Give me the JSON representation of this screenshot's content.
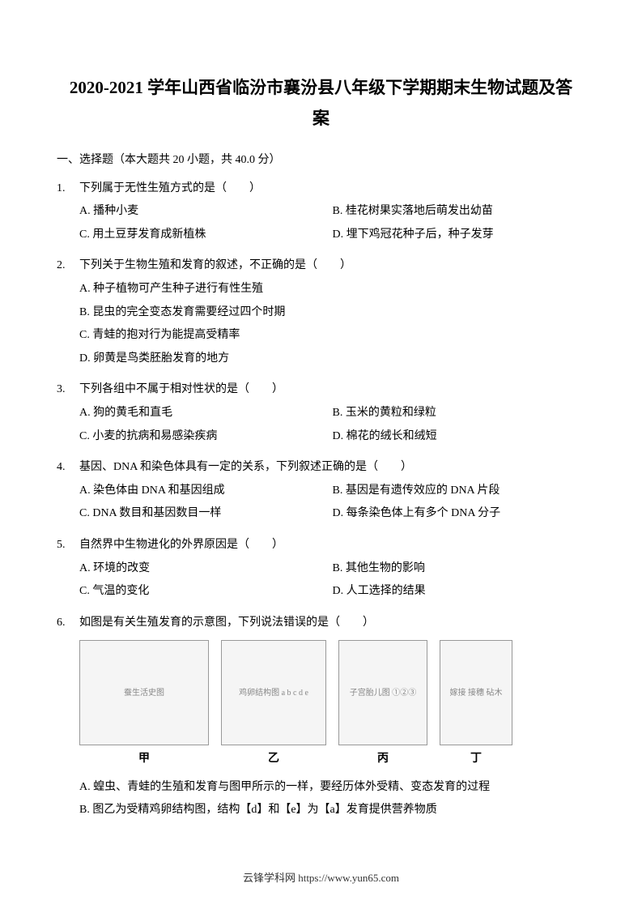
{
  "title_line1": "2020-2021 学年山西省临汾市襄汾县八年级下学期期末生物试题及答",
  "title_line2": "案",
  "section_header": "一、选择题（本大题共 20 小题，共 40.0 分）",
  "questions": [
    {
      "num": "1.",
      "stem": "下列属于无性生殖方式的是（　　）",
      "layout": "two-col",
      "options": [
        {
          "label": "A.",
          "text": "播种小麦"
        },
        {
          "label": "B.",
          "text": "桂花树果实落地后萌发出幼苗"
        },
        {
          "label": "C.",
          "text": "用土豆芽发育成新植株"
        },
        {
          "label": "D.",
          "text": "埋下鸡冠花种子后，种子发芽"
        }
      ]
    },
    {
      "num": "2.",
      "stem": "下列关于生物生殖和发育的叙述，不正确的是（　　）",
      "layout": "one-col",
      "options": [
        {
          "label": "A.",
          "text": "种子植物可产生种子进行有性生殖"
        },
        {
          "label": "B.",
          "text": "昆虫的完全变态发育需要经过四个时期"
        },
        {
          "label": "C.",
          "text": "青蛙的抱对行为能提高受精率"
        },
        {
          "label": "D.",
          "text": "卵黄是鸟类胚胎发育的地方"
        }
      ]
    },
    {
      "num": "3.",
      "stem": "下列各组中不属于相对性状的是（　　）",
      "layout": "two-col",
      "options": [
        {
          "label": "A.",
          "text": "狗的黄毛和直毛"
        },
        {
          "label": "B.",
          "text": "玉米的黄粒和绿粒"
        },
        {
          "label": "C.",
          "text": "小麦的抗病和易感染疾病"
        },
        {
          "label": "D.",
          "text": "棉花的绒长和绒短"
        }
      ]
    },
    {
      "num": "4.",
      "stem": "基因、DNA 和染色体具有一定的关系，下列叙述正确的是（　　）",
      "layout": "two-col",
      "options": [
        {
          "label": "A.",
          "text": "染色体由 DNA 和基因组成"
        },
        {
          "label": "B.",
          "text": "基因是有遗传效应的 DNA 片段"
        },
        {
          "label": "C.",
          "text": "DNA 数目和基因数目一样"
        },
        {
          "label": "D.",
          "text": "每条染色体上有多个 DNA 分子"
        }
      ]
    },
    {
      "num": "5.",
      "stem": "自然界中生物进化的外界原因是（　　）",
      "layout": "two-col",
      "options": [
        {
          "label": "A.",
          "text": "环境的改变"
        },
        {
          "label": "B.",
          "text": "其他生物的影响"
        },
        {
          "label": "C.",
          "text": "气温的变化"
        },
        {
          "label": "D.",
          "text": "人工选择的结果"
        }
      ]
    },
    {
      "num": "6.",
      "stem": "如图是有关生殖发育的示意图，下列说法错误的是（　　）",
      "layout": "figure",
      "figures": [
        {
          "label": "甲",
          "alt": "蚕生活史图"
        },
        {
          "label": "乙",
          "alt": "鸡卵结构图 a b c d e"
        },
        {
          "label": "丙",
          "alt": "子宫胎儿图 ①②③"
        },
        {
          "label": "丁",
          "alt": "嫁接 接穗 砧木"
        }
      ],
      "options": [
        {
          "label": "A.",
          "text": "蝗虫、青蛙的生殖和发育与图甲所示的一样，要经历体外受精、变态发育的过程"
        },
        {
          "label": "B.",
          "text": "图乙为受精鸡卵结构图，结构【d】和【e】为【a】发育提供营养物质"
        }
      ]
    }
  ],
  "footer": "云锋学科网 https://www.yun65.com"
}
